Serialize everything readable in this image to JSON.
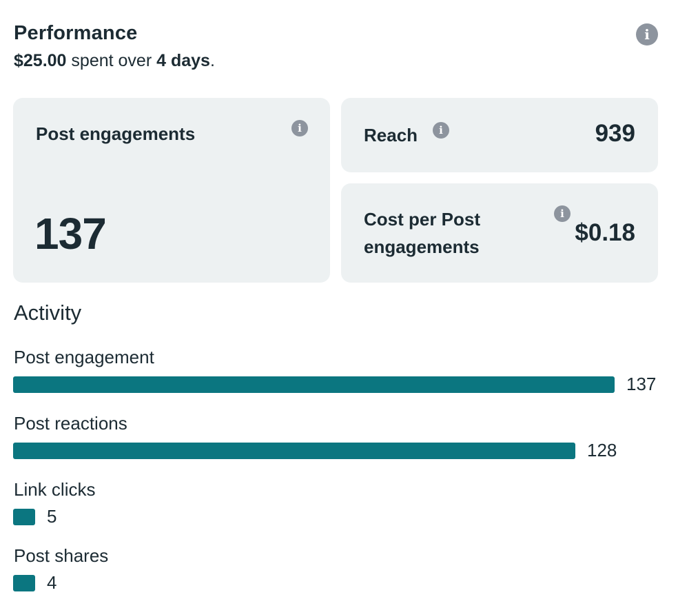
{
  "header": {
    "title": "Performance",
    "spent_amount": "$25.00",
    "spent_text": "spent over",
    "duration": "4 days",
    "period_suffix": "."
  },
  "cards": {
    "post_engagements": {
      "label": "Post engagements",
      "value": "137"
    },
    "reach": {
      "label": "Reach",
      "value": "939"
    },
    "cost_per": {
      "label_line1": "Cost per Post",
      "label_line2": "engagements",
      "value": "$0.18"
    }
  },
  "activity": {
    "title": "Activity",
    "max_value": 137,
    "items": [
      {
        "label": "Post engagement",
        "value": 137
      },
      {
        "label": "Post reactions",
        "value": 128
      },
      {
        "label": "Link clicks",
        "value": 5
      },
      {
        "label": "Post shares",
        "value": 4
      }
    ]
  },
  "colors": {
    "bar": "#0b7680",
    "card_bg": "#edf1f2",
    "info_icon": "#8d949e",
    "text": "#1c2b33"
  },
  "icons": {
    "info": "info-icon",
    "info_glyph": "i"
  }
}
